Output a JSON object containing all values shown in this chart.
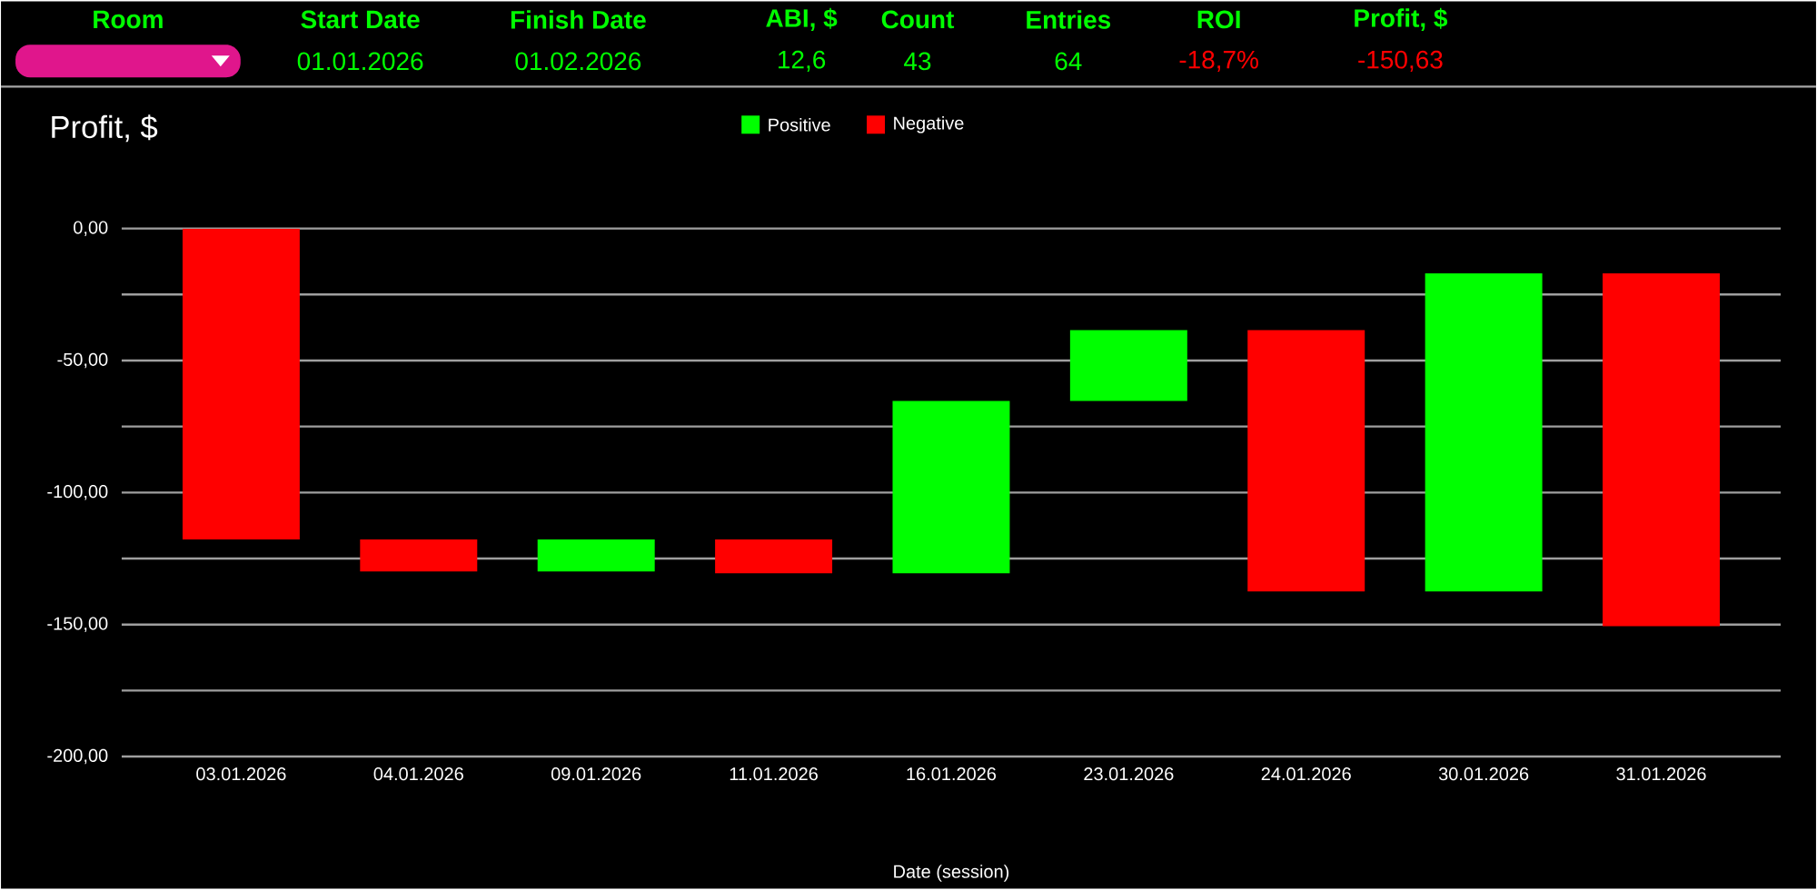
{
  "chart_data": [
    {
      "type": "other",
      "categories": [
        "Room",
        "Start Date",
        "Finish Date",
        "ABI, $",
        "Count",
        "Entries",
        "ROI",
        "Profit, $"
      ],
      "value_labels": [
        null,
        "01.01.2026",
        "01.02.2026",
        "12,6",
        "43",
        "64",
        "-18,7%",
        "-150,63"
      ],
      "colors": [
        null,
        "#00ff00",
        "#00ff00",
        "#00ff00",
        "#00ff00",
        "#00ff00",
        "#ff0000",
        "#ff0000"
      ]
    },
    {
      "type": "bar",
      "title": "Profit, $",
      "xlabel": "Date (session)",
      "categories": [
        "03.01.2026",
        "04.01.2026",
        "09.01.2026",
        "11.01.2026",
        "16.01.2026",
        "23.01.2026",
        "24.01.2026",
        "30.01.2026",
        "31.01.2026"
      ],
      "series": [
        {
          "name": "Positive",
          "color": "#00ff00",
          "values": [
            null,
            null,
            12.1,
            null,
            65.3,
            26.8,
            null,
            120.5,
            null
          ],
          "base": [
            null,
            null,
            -129.9,
            null,
            -130.6,
            -65.3,
            null,
            -137.5,
            null
          ]
        },
        {
          "name": "Negative",
          "color": "#ff0000",
          "values": [
            -117.8,
            -12.1,
            null,
            -12.8,
            null,
            null,
            -99,
            null,
            -133.6
          ],
          "base": [
            0,
            -117.8,
            null,
            -117.8,
            null,
            null,
            -38.5,
            null,
            -17
          ]
        }
      ],
      "ylim": [
        -200,
        0
      ],
      "yticks": [
        {
          "value": -200,
          "label": "-200,00"
        },
        {
          "value": -175,
          "label": null
        },
        {
          "value": -150,
          "label": "-150,00"
        },
        {
          "value": -125,
          "label": null
        },
        {
          "value": -100,
          "label": "-100,00"
        },
        {
          "value": -75,
          "label": null
        },
        {
          "value": -50,
          "label": "-50,00"
        },
        {
          "value": -25,
          "label": null
        },
        {
          "value": 0,
          "label": "0,00"
        }
      ],
      "grid": "y",
      "legend": "top"
    }
  ]
}
